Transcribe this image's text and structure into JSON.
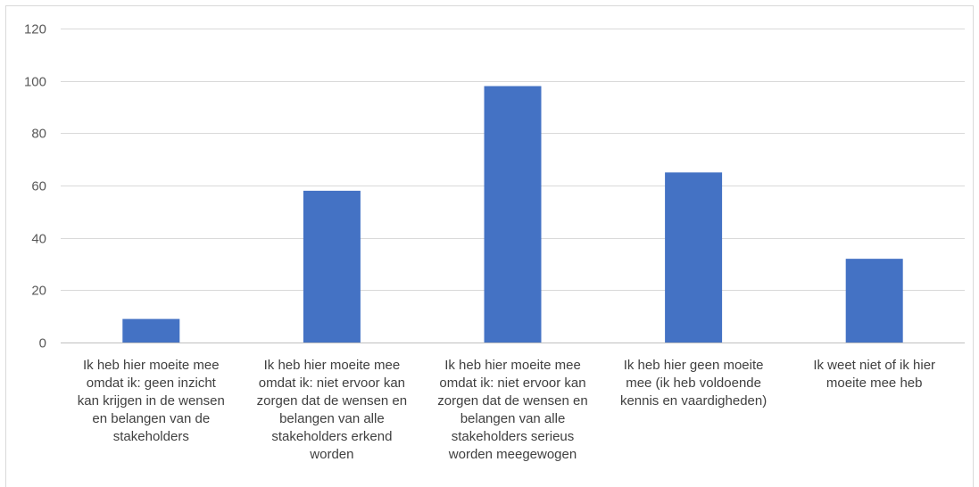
{
  "chart_data": {
    "type": "bar",
    "title": "",
    "xlabel": "",
    "ylabel": "",
    "ylim": [
      0,
      120
    ],
    "yticks": [
      0,
      20,
      40,
      60,
      80,
      100,
      120
    ],
    "grid": true,
    "legend": "none",
    "bar_color": "#4472c4",
    "categories": [
      [
        "Ik heb hier moeite mee",
        "omdat ik: geen inzicht",
        "kan krijgen in de wensen",
        "en belangen van de",
        "stakeholders"
      ],
      [
        "Ik heb hier moeite mee",
        "omdat ik: niet ervoor kan",
        "zorgen dat de wensen en",
        "belangen van alle",
        "stakeholders erkend",
        "worden"
      ],
      [
        "Ik heb hier moeite mee",
        "omdat ik: niet ervoor kan",
        "zorgen dat  de wensen en",
        "belangen van alle",
        "stakeholders serieus",
        "worden meegewogen"
      ],
      [
        "Ik heb hier geen moeite",
        "mee (ik heb voldoende",
        "kennis en vaardigheden)"
      ],
      [
        "Ik weet niet of ik hier",
        "moeite mee heb"
      ]
    ],
    "values": [
      9,
      58,
      98,
      65,
      32
    ]
  }
}
